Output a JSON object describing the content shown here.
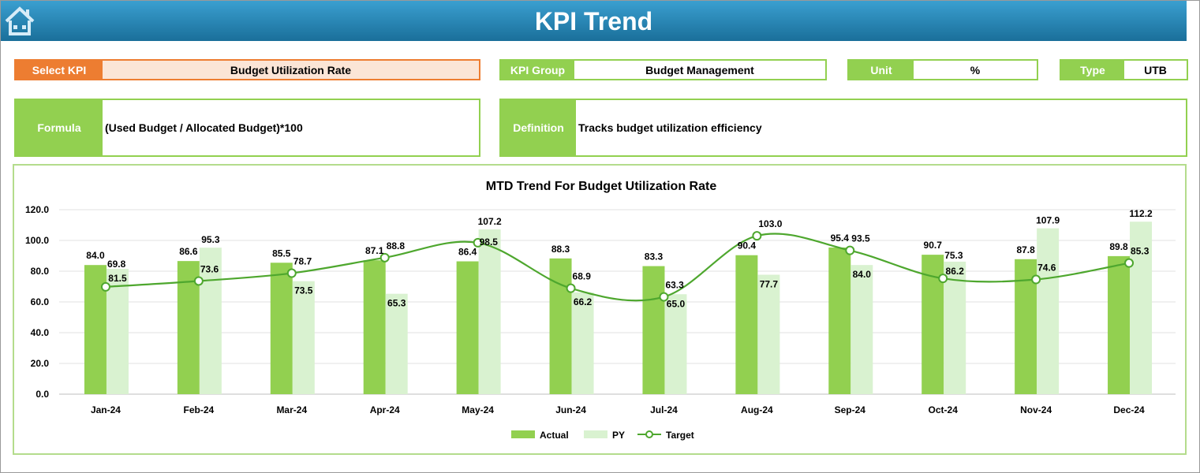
{
  "header": {
    "title": "KPI Trend",
    "home_icon": "home-icon"
  },
  "select_kpi": {
    "label": "Select KPI",
    "value": "Budget Utilization Rate"
  },
  "kpi_group": {
    "label": "KPI Group",
    "value": "Budget Management"
  },
  "unit": {
    "label": "Unit",
    "value": "%"
  },
  "type": {
    "label": "Type",
    "value": "UTB"
  },
  "formula": {
    "label": "Formula",
    "value": "(Used Budget / Allocated Budget)*100"
  },
  "definition": {
    "label": "Definition",
    "value": "Tracks budget utilization efficiency"
  },
  "colors": {
    "accent": "#92d050",
    "select": "#ed7d31",
    "actual": "#92d050",
    "py": "#d9f2d0",
    "target": "#4ea72e"
  },
  "chart_data": {
    "type": "bar",
    "title": "MTD Trend For Budget Utilization Rate",
    "categories": [
      "Jan-24",
      "Feb-24",
      "Mar-24",
      "Apr-24",
      "May-24",
      "Jun-24",
      "Jul-24",
      "Aug-24",
      "Sep-24",
      "Oct-24",
      "Nov-24",
      "Dec-24"
    ],
    "ylim": [
      0,
      120
    ],
    "yticks": [
      "0.0",
      "20.0",
      "40.0",
      "60.0",
      "80.0",
      "100.0",
      "120.0"
    ],
    "grid": true,
    "legend": "bottom",
    "series": [
      {
        "name": "Actual",
        "type": "bar",
        "values": [
          84.0,
          86.6,
          85.5,
          87.1,
          86.4,
          88.3,
          83.3,
          90.4,
          95.4,
          90.7,
          87.8,
          89.8
        ]
      },
      {
        "name": "PY",
        "type": "bar",
        "values": [
          81.5,
          95.3,
          73.5,
          65.3,
          107.2,
          66.2,
          65.0,
          77.7,
          84.0,
          86.2,
          107.9,
          112.2
        ]
      },
      {
        "name": "Target",
        "type": "line",
        "values": [
          69.8,
          73.6,
          78.7,
          88.8,
          98.5,
          68.9,
          63.3,
          103.0,
          93.5,
          75.3,
          74.6,
          85.3
        ]
      }
    ]
  }
}
